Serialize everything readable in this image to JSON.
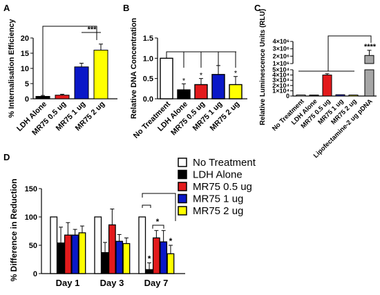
{
  "chart_data": [
    {
      "panel": "A",
      "type": "bar",
      "ylabel": "% Internalisation Efficiency",
      "ylim": [
        0,
        20
      ],
      "yticks": [
        0,
        5,
        10,
        15,
        20
      ],
      "categories": [
        "LDH Alone",
        "MR75 0.5 ug",
        "MR75 1 ug",
        "MR75 2 ug"
      ],
      "values": [
        0.8,
        1.2,
        10.5,
        16
      ],
      "errors": [
        0.3,
        0.3,
        1.2,
        2.0
      ],
      "colors": [
        "#000000",
        "#e31a1c",
        "#0a18c8",
        "#ffff00"
      ],
      "annotations": [
        "***"
      ]
    },
    {
      "panel": "B",
      "type": "bar",
      "ylabel": "Relative DNA Concentration",
      "ylim": [
        0,
        1.5
      ],
      "yticks": [
        0.0,
        0.5,
        1.0,
        1.5
      ],
      "categories": [
        "No Treatment",
        "LDH Alone",
        "MR75 0.5 ug",
        "MR75 1 ug",
        "MR75 2 ug"
      ],
      "values": [
        1.0,
        0.22,
        0.35,
        0.6,
        0.35
      ],
      "errors": [
        0.0,
        0.15,
        0.15,
        0.22,
        0.2
      ],
      "colors": [
        "#ffffff",
        "#000000",
        "#e31a1c",
        "#0a18c8",
        "#ffff00"
      ],
      "significance": [
        "",
        "*",
        "*",
        "",
        "*"
      ]
    },
    {
      "panel": "C",
      "type": "bar",
      "ylabel": "Relative Luminescence Units (RLU)",
      "axis_break": true,
      "yticks_lower": [
        "0",
        "1×10⁴",
        "2×10⁴",
        "3×10⁴",
        "4×10⁴",
        "5×10⁴"
      ],
      "yticks_upper": [
        "1×10⁶",
        "2×10⁶",
        "3×10⁶",
        "4×10⁶"
      ],
      "categories": [
        "No Treatment",
        "LDH Alone",
        "MR75 0.5 ug",
        "MR75 1 ug",
        "MR75 2 ug",
        "Lipofectamine-2 ug pDNA"
      ],
      "values": [
        0,
        800,
        40000,
        2500,
        1000,
        2100000
      ],
      "errors": [
        0,
        200,
        2500,
        600,
        300,
        700000
      ],
      "colors": [
        "#ffffff",
        "#000000",
        "#e31a1c",
        "#0a18c8",
        "#ffff00",
        "#a6a6a6"
      ],
      "annotations": [
        "****"
      ]
    },
    {
      "panel": "D",
      "type": "bar",
      "ylabel": "% Difference in Reduction",
      "ylim": [
        0,
        150
      ],
      "yticks": [
        0,
        50,
        100,
        150
      ],
      "categories": [
        "Day 1",
        "Day 3",
        "Day 7"
      ],
      "series": [
        {
          "name": "No Treatment",
          "color": "#ffffff",
          "values": [
            100,
            100,
            100
          ],
          "errors": [
            0,
            0,
            0
          ]
        },
        {
          "name": "LDH Alone",
          "color": "#000000",
          "values": [
            54,
            37,
            7
          ],
          "errors": [
            28,
            18,
            12
          ]
        },
        {
          "name": "MR75 0.5 ug",
          "color": "#e31a1c",
          "values": [
            68,
            86,
            63
          ],
          "errors": [
            22,
            28,
            13
          ]
        },
        {
          "name": "MR75 1 ug",
          "color": "#0a18c8",
          "values": [
            68,
            57,
            56
          ],
          "errors": [
            10,
            12,
            20
          ]
        },
        {
          "name": "MR75 2 ug",
          "color": "#ffff00",
          "values": [
            72,
            53,
            35
          ],
          "errors": [
            12,
            10,
            15
          ]
        }
      ],
      "significance": [
        [
          "",
          "",
          "",
          "",
          ""
        ],
        [
          "",
          "",
          "",
          "",
          ""
        ],
        [
          "",
          "*",
          "",
          "",
          "*"
        ]
      ],
      "annotations": [
        "*"
      ]
    }
  ],
  "panel_letters": [
    "A",
    "B",
    "C",
    "D"
  ]
}
